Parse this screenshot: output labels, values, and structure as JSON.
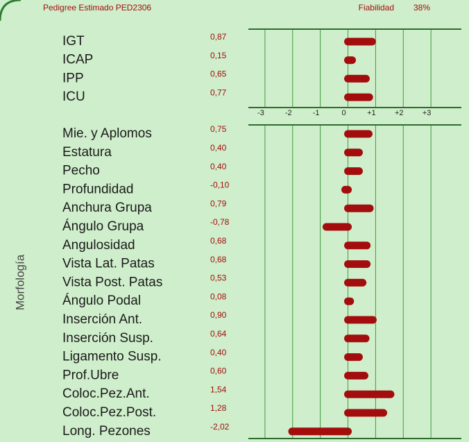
{
  "chart_data": [
    {
      "type": "bar",
      "title": "Pedigree Estimado PED2306",
      "subtitle": "Fiabilidad",
      "reliability": "38%",
      "categories": [
        "IGT",
        "ICAP",
        "IPP",
        "ICU"
      ],
      "values": [
        0.87,
        0.15,
        0.65,
        0.77
      ],
      "value_labels": [
        "0,87",
        "0,15",
        "0,65",
        "0,77"
      ],
      "color": "#a30d0d",
      "xlim": [
        -3.6,
        4.1
      ],
      "xticks": [
        -3,
        -2,
        -1,
        0,
        {
          "value": 1,
          "label": "+1"
        },
        {
          "value": 2,
          "label": "+2"
        },
        {
          "value": 3,
          "label": "+3"
        }
      ],
      "grid": true
    },
    {
      "type": "bar",
      "ylabel": "Morfología",
      "categories": [
        "Mie. y Aplomos",
        "Estatura",
        "Pecho",
        "Profundidad",
        "Anchura Grupa",
        "Ángulo Grupa",
        "Angulosidad",
        "Vista Lat. Patas",
        "Vista Post. Patas",
        "Ángulo Podal",
        "Inserción Ant.",
        "Inserción Susp.",
        "Ligamento Susp.",
        "Prof.Ubre",
        "Coloc.Pez.Ant.",
        "Coloc.Pez.Post.",
        "Long. Pezones"
      ],
      "values": [
        0.75,
        0.4,
        0.4,
        -0.1,
        0.79,
        -0.78,
        0.68,
        0.68,
        0.53,
        0.08,
        0.9,
        0.64,
        0.4,
        0.6,
        1.54,
        1.28,
        -2.02
      ],
      "value_labels": [
        "0,75",
        "0,40",
        "0,40",
        "-0,10",
        "0,79",
        "-0,78",
        "0,68",
        "0,68",
        "0,53",
        "0,08",
        "0,90",
        "0,64",
        "0,40",
        "0,60",
        "1,54",
        "1,28",
        "-2,02"
      ],
      "color": "#a30d0d",
      "xlim": [
        -3.6,
        4.1
      ],
      "xticks": [
        -3,
        -2,
        -1,
        0,
        1,
        2,
        3
      ],
      "grid": true
    }
  ]
}
